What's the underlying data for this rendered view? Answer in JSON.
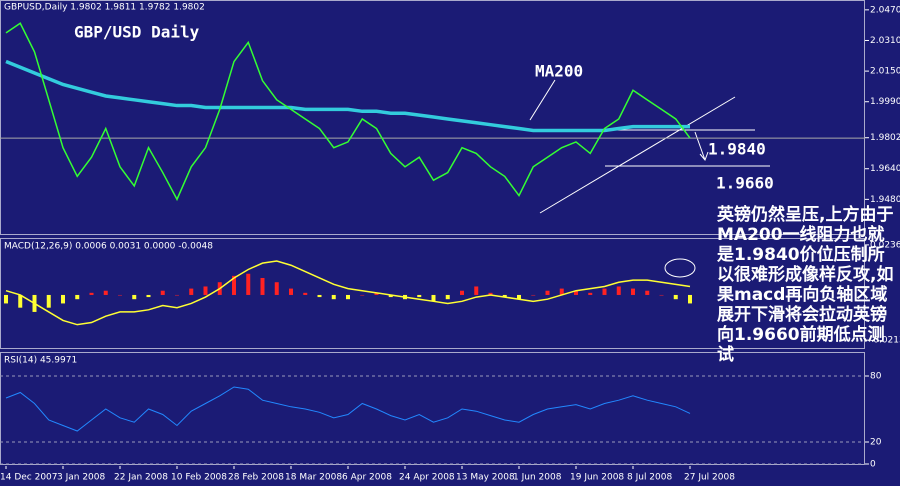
{
  "chart_data": [
    {
      "type": "line",
      "header": "GBPUSD,Daily  1.9802 1.9811 1.9782 1.9802",
      "title": "GBP/USD Daily",
      "annotations": [
        "MA200",
        "1.9840",
        "1.9660"
      ],
      "categories": [
        "14 Dec 2007",
        null,
        null,
        null,
        "3 Jan 2008",
        null,
        null,
        null,
        "22 Jan 2008",
        null,
        null,
        null,
        "10 Feb 2008",
        null,
        null,
        null,
        "28 Feb 2008",
        null,
        null,
        null,
        "18 Mar 2008",
        null,
        null,
        null,
        "6 Apr 2008",
        null,
        null,
        null,
        "24 Apr 2008",
        null,
        null,
        null,
        "13 May 2008",
        null,
        null,
        null,
        "1 Jun 2008",
        null,
        null,
        null,
        "19 Jun 2008",
        null,
        null,
        null,
        "8 Jul 2008",
        null,
        null,
        null,
        "27 Jul 2008"
      ],
      "series": [
        {
          "name": "GBPUSD",
          "color": "#33ff33",
          "values": [
            2.035,
            2.04,
            2.025,
            2.0,
            1.975,
            1.96,
            1.97,
            1.985,
            1.965,
            1.955,
            1.975,
            1.962,
            1.948,
            1.965,
            1.975,
            1.995,
            2.02,
            2.03,
            2.01,
            2.0,
            1.995,
            1.99,
            1.985,
            1.975,
            1.978,
            1.99,
            1.985,
            1.972,
            1.965,
            1.97,
            1.958,
            1.962,
            1.975,
            1.972,
            1.965,
            1.96,
            1.95,
            1.965,
            1.97,
            1.975,
            1.978,
            1.972,
            1.985,
            1.99,
            2.005,
            2.0,
            1.995,
            1.99,
            1.98
          ]
        },
        {
          "name": "MA200",
          "color": "#33ccdd",
          "values": [
            2.02,
            2.017,
            2.014,
            2.011,
            2.008,
            2.006,
            2.004,
            2.002,
            2.001,
            2.0,
            1.999,
            1.998,
            1.997,
            1.997,
            1.996,
            1.996,
            1.996,
            1.996,
            1.996,
            1.996,
            1.996,
            1.995,
            1.995,
            1.995,
            1.995,
            1.994,
            1.994,
            1.993,
            1.993,
            1.992,
            1.991,
            1.99,
            1.989,
            1.988,
            1.987,
            1.986,
            1.985,
            1.984,
            1.984,
            1.984,
            1.984,
            1.984,
            1.984,
            1.985,
            1.986,
            1.986,
            1.986,
            1.986,
            1.986
          ]
        }
      ],
      "ylim": [
        1.9299,
        2.0511
      ],
      "yticks": [
        {
          "value": 2.047,
          "label": "2.0470"
        },
        {
          "value": 2.031,
          "label": "2.0310"
        },
        {
          "value": 2.015,
          "label": "2.0150"
        },
        {
          "value": 1.999,
          "label": "1.9990"
        },
        1.9802,
        {
          "value": 1.964,
          "label": "1.9640"
        },
        {
          "value": 1.948,
          "label": "1.9480"
        }
      ]
    },
    {
      "type": "macd",
      "header": "MACD(12,26,9) 0.0006 0.0031 0.0000 -0.0048",
      "series": [
        {
          "name": "histogram",
          "color": "#ff2222",
          "values": [
            -0.004,
            -0.006,
            -0.008,
            -0.006,
            -0.004,
            -0.002,
            0.001,
            0.002,
            0.0,
            -0.002,
            -0.001,
            0.002,
            0.0,
            0.003,
            0.004,
            0.006,
            0.009,
            0.01,
            0.008,
            0.006,
            0.003,
            0.001,
            -0.001,
            -0.002,
            -0.002,
            0.0,
            0.001,
            -0.001,
            -0.002,
            -0.001,
            -0.003,
            -0.002,
            0.002,
            0.004,
            0.001,
            -0.001,
            -0.002,
            0.0,
            0.002,
            0.003,
            0.002,
            0.001,
            0.003,
            0.004,
            0.003,
            0.002,
            0.0,
            -0.002,
            -0.004
          ]
        },
        {
          "name": "signal",
          "color": "#ffff33",
          "values": [
            0.002,
            0.0,
            -0.004,
            -0.008,
            -0.012,
            -0.014,
            -0.013,
            -0.01,
            -0.008,
            -0.008,
            -0.007,
            -0.005,
            -0.006,
            -0.004,
            -0.001,
            0.003,
            0.008,
            0.012,
            0.015,
            0.016,
            0.014,
            0.011,
            0.008,
            0.005,
            0.003,
            0.002,
            0.001,
            0.0,
            -0.001,
            -0.002,
            -0.003,
            -0.004,
            -0.003,
            -0.001,
            0.0,
            -0.001,
            -0.002,
            -0.003,
            -0.002,
            0.0,
            0.002,
            0.003,
            0.004,
            0.006,
            0.007,
            0.007,
            0.006,
            0.005,
            0.004
          ]
        }
      ],
      "negative_color": "#ffff33",
      "ylim": [
        -0.025,
        0.0259
      ],
      "yticks": [
        0.0236,
        -0.0213
      ]
    },
    {
      "type": "rsi",
      "header": "RSI(14) 45.9971",
      "series": [
        {
          "name": "RSI",
          "color": "#2288ff",
          "values": [
            60,
            65,
            55,
            40,
            35,
            30,
            40,
            50,
            42,
            38,
            50,
            45,
            35,
            48,
            55,
            62,
            70,
            68,
            58,
            55,
            52,
            50,
            47,
            42,
            45,
            55,
            50,
            44,
            40,
            45,
            38,
            42,
            50,
            48,
            44,
            40,
            38,
            45,
            50,
            52,
            54,
            50,
            55,
            58,
            62,
            58,
            55,
            52,
            46
          ]
        }
      ],
      "ylim": [
        0,
        100
      ],
      "yticks": [
        0,
        20,
        80
      ]
    }
  ],
  "note": "英镑仍然呈压,上方由于MA200一线阻力也就是1.9840价位压制所以很难形成像样反攻,如果macd再向负轴区域展开下滑将会拉动英镑向1.9660前期低点测试"
}
